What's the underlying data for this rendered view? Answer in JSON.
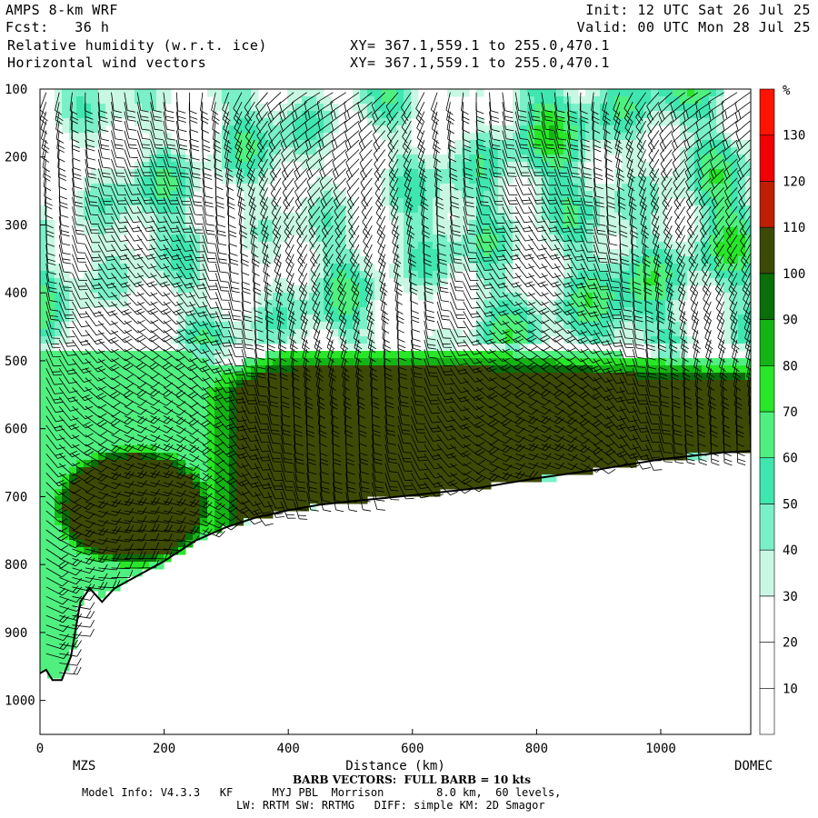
{
  "header": {
    "model": "AMPS 8-km WRF",
    "forecast": "Fcst:   36 h",
    "field1": "Relative humidity (w.r.t. ice)",
    "field2": "Horizontal wind vectors",
    "xy1": "XY= 367.1,559.1 to 255.0,470.1",
    "xy2": "XY= 367.1,559.1 to 255.0,470.1",
    "init": "Init: 12 UTC Sat 26 Jul 25",
    "valid": "Valid: 00 UTC Mon 28 Jul 25"
  },
  "footer": {
    "barb_note": "BARB VECTORS:  FULL BARB = 10 kts",
    "model_info": "Model Info: V4.3.3   KF      MYJ PBL  Morrison        8.0 km,  60 levels,",
    "physics": "LW: RRTM SW: RRTMG   DIFF: simple KM: 2D Smagor"
  },
  "colors": {
    "frame": "#000000",
    "background": "#ffffff"
  },
  "chart_data": {
    "type": "heatmap",
    "title": "Relative humidity (w.r.t. ice)",
    "xlabel": "Distance (km)",
    "ylabel": "",
    "x_ticks": [
      0,
      200,
      400,
      600,
      800,
      1000
    ],
    "xlim": [
      0,
      1145
    ],
    "y_ticks": [
      100,
      200,
      300,
      400,
      500,
      600,
      700,
      800,
      900,
      1000
    ],
    "ylim": [
      1050,
      100
    ],
    "endpoint_labels": [
      "MZS",
      "DOMEC"
    ],
    "colorbar": {
      "unit": "%",
      "ticks": [
        10,
        20,
        30,
        40,
        50,
        60,
        70,
        80,
        90,
        100,
        110,
        120,
        130
      ],
      "bins": [
        {
          "from": 0,
          "to": 10,
          "color": "#ffffff"
        },
        {
          "from": 10,
          "to": 20,
          "color": "#ffffff"
        },
        {
          "from": 20,
          "to": 30,
          "color": "#ffffff"
        },
        {
          "from": 30,
          "to": 40,
          "color": "#c8f8e4"
        },
        {
          "from": 40,
          "to": 50,
          "color": "#7af0c8"
        },
        {
          "from": 50,
          "to": 60,
          "color": "#40e6b0"
        },
        {
          "from": 60,
          "to": 70,
          "color": "#50f080"
        },
        {
          "from": 70,
          "to": 80,
          "color": "#28e628"
        },
        {
          "from": 80,
          "to": 90,
          "color": "#14b414"
        },
        {
          "from": 90,
          "to": 100,
          "color": "#0a6e0a"
        },
        {
          "from": 100,
          "to": 110,
          "color": "#3d4a05"
        },
        {
          "from": 110,
          "to": 120,
          "color": "#c01e00"
        },
        {
          "from": 120,
          "to": 130,
          "color": "#f00000"
        },
        {
          "from": 130,
          "to": 140,
          "color": "#ff1400"
        }
      ]
    },
    "terrain_surface": {
      "distance_km": [
        0,
        10,
        20,
        35,
        50,
        65,
        80,
        100,
        120,
        150,
        200,
        250,
        300,
        350,
        400,
        450,
        500,
        600,
        700,
        800,
        900,
        1000,
        1100,
        1145
      ],
      "pressure_hpa": [
        960,
        955,
        970,
        970,
        935,
        855,
        835,
        855,
        835,
        820,
        795,
        765,
        745,
        730,
        720,
        712,
        707,
        698,
        688,
        673,
        660,
        645,
        635,
        633
      ]
    },
    "rh_features": [
      {
        "name": "saturated layer",
        "distance_km": [
          300,
          1145
        ],
        "pressure_hpa": [
          480,
          700
        ],
        "rh_percent": 105
      },
      {
        "name": "low-level cloud",
        "distance_km": [
          80,
          300
        ],
        "pressure_hpa": [
          640,
          780
        ],
        "rh_percent": 100
      },
      {
        "name": "upper moist layers",
        "distance_km": [
          0,
          1145
        ],
        "pressure_hpa": [
          100,
          450
        ],
        "rh_percent": 45
      }
    ]
  }
}
